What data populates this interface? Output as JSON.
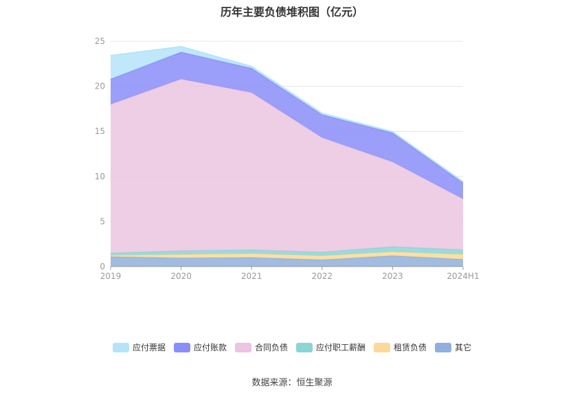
{
  "chart_data": {
    "type": "area",
    "stacked": true,
    "title": "历年主要负债堆积图（亿元）",
    "categories": [
      "2019",
      "2020",
      "2021",
      "2022",
      "2023",
      "2024H1"
    ],
    "ylim": [
      0,
      25
    ],
    "yticks": [
      0,
      5,
      10,
      15,
      20,
      25
    ],
    "grid": true,
    "legend_position": "bottom",
    "series": [
      {
        "name": "其它",
        "color": "#8fb0dc",
        "values": [
          1.1,
          0.95,
          1.0,
          0.75,
          1.2,
          0.8
        ]
      },
      {
        "name": "租赁负债",
        "color": "#fcd998",
        "values": [
          0.15,
          0.4,
          0.45,
          0.45,
          0.45,
          0.55
        ]
      },
      {
        "name": "应付职工薪酬",
        "color": "#8ad5d6",
        "values": [
          0.25,
          0.4,
          0.4,
          0.4,
          0.55,
          0.5
        ]
      },
      {
        "name": "合同负债",
        "color": "#ebc5e1",
        "values": [
          16.5,
          19.05,
          17.45,
          12.7,
          9.4,
          5.65
        ]
      },
      {
        "name": "应付账款",
        "color": "#8a8ef8",
        "values": [
          2.8,
          3.0,
          2.7,
          2.55,
          3.25,
          1.8
        ]
      },
      {
        "name": "应付票据",
        "color": "#b5e4f9",
        "values": [
          2.6,
          0.6,
          0.2,
          0.15,
          0.1,
          0.1
        ]
      }
    ]
  },
  "legend_order": [
    "应付票据",
    "应付账款",
    "合同负债",
    "应付职工薪酬",
    "租赁负债",
    "其它"
  ],
  "source": "数据来源：恒生聚源"
}
